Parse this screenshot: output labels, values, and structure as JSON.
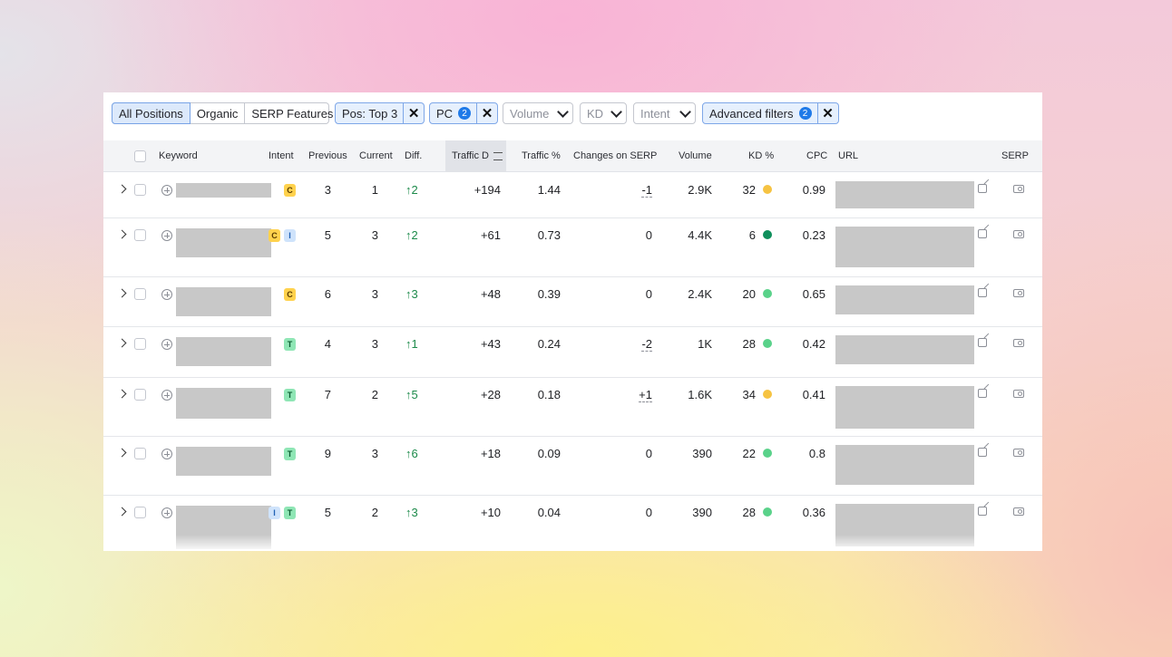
{
  "filters": {
    "tabs": [
      "All Positions",
      "Organic",
      "SERP Features"
    ],
    "pos_chip": "Pos: Top 3",
    "device_chip": "PC",
    "device_count": "2",
    "volume": "Volume",
    "kd": "KD",
    "intent": "Intent",
    "advanced": "Advanced filters",
    "advanced_count": "2",
    "remove_icon": "close-icon",
    "remove_glyph": "✕"
  },
  "columns": {
    "keyword": "Keyword",
    "intent": "Intent",
    "previous": "Previous",
    "current": "Current",
    "diff": "Diff.",
    "traffic_diff": "Traffic D",
    "traffic_pct": "Traffic %",
    "changes": "Changes on SERP",
    "volume": "Volume",
    "kd": "KD %",
    "cpc": "CPC",
    "url": "URL",
    "serp": "SERP"
  },
  "colors": {
    "kd_easy": "#5ad28a",
    "kd_medium": "#f6c342",
    "kd_hard": "#0f8f5c",
    "diff_up": "#1c8a4a"
  },
  "rows": [
    {
      "intent": [
        "C"
      ],
      "previous": "3",
      "current": "1",
      "diff": "↑2",
      "traffic": "+194",
      "traffic_pct": "1.44",
      "changes": "-1",
      "volume": "2.9K",
      "kd": "32",
      "kd_level": "medium",
      "cpc": "0.99"
    },
    {
      "intent": [
        "C",
        "I"
      ],
      "previous": "5",
      "current": "3",
      "diff": "↑2",
      "traffic": "+61",
      "traffic_pct": "0.73",
      "changes": "0",
      "volume": "4.4K",
      "kd": "6",
      "kd_level": "hard",
      "cpc": "0.23"
    },
    {
      "intent": [
        "C"
      ],
      "previous": "6",
      "current": "3",
      "diff": "↑3",
      "traffic": "+48",
      "traffic_pct": "0.39",
      "changes": "0",
      "volume": "2.4K",
      "kd": "20",
      "kd_level": "easy",
      "cpc": "0.65"
    },
    {
      "intent": [
        "T"
      ],
      "previous": "4",
      "current": "3",
      "diff": "↑1",
      "traffic": "+43",
      "traffic_pct": "0.24",
      "changes": "-2",
      "volume": "1K",
      "kd": "28",
      "kd_level": "easy",
      "cpc": "0.42"
    },
    {
      "intent": [
        "T"
      ],
      "previous": "7",
      "current": "2",
      "diff": "↑5",
      "traffic": "+28",
      "traffic_pct": "0.18",
      "changes": "+1",
      "volume": "1.6K",
      "kd": "34",
      "kd_level": "medium",
      "cpc": "0.41"
    },
    {
      "intent": [
        "T"
      ],
      "previous": "9",
      "current": "3",
      "diff": "↑6",
      "traffic": "+18",
      "traffic_pct": "0.09",
      "changes": "0",
      "volume": "390",
      "kd": "22",
      "kd_level": "easy",
      "cpc": "0.8"
    },
    {
      "intent": [
        "I",
        "T"
      ],
      "previous": "5",
      "current": "2",
      "diff": "↑3",
      "traffic": "+10",
      "traffic_pct": "0.04",
      "changes": "0",
      "volume": "390",
      "kd": "28",
      "kd_level": "easy",
      "cpc": "0.36"
    }
  ]
}
